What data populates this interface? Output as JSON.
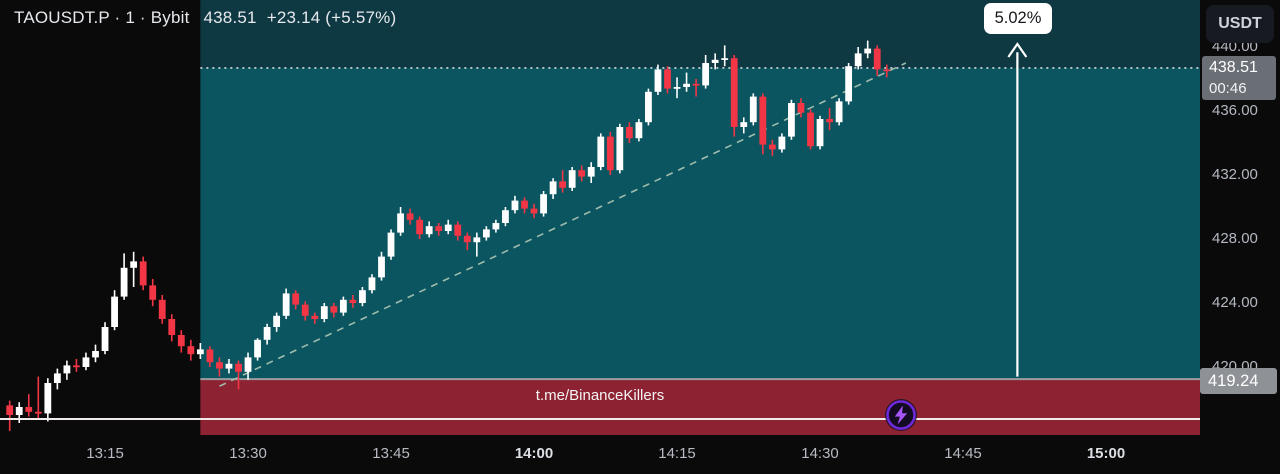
{
  "header": {
    "symbol_line": "TAOUSDT.P · 1 · Bybit",
    "last_price": "438.51",
    "change": "+23.14 (+5.57%)"
  },
  "top_right": {
    "currency_label": "USDT"
  },
  "annotations": {
    "gain_label": "5.02%",
    "watermark": "t.me/BinanceKillers",
    "lightning_icon": "lightning-bolt-badge"
  },
  "price_axis": {
    "current_price_label": "438.51",
    "countdown": "00:46",
    "level_label": "419.24"
  },
  "colors": {
    "background": "#0a0a0b",
    "zone_tint_above_target": "#0f3942",
    "long_zone_teal": "#0a5560",
    "stop_zone_red": "#8d2332",
    "candle_up": "#ffffff",
    "candle_down": "#f23645",
    "trendline": "#9fbcad",
    "target_dotted_line": "#d8dee1",
    "entry_level_line": "#9b9da1",
    "price_line_white": "#f1ecea",
    "arrow": "#ffffff",
    "badge_bg": "#ffffff",
    "badge_text": "#15171b",
    "axis_text": "#b4b8c0",
    "label_bg_gray": "#6a6e75",
    "level_label_bg": "#8e9196",
    "bolt_purple": "#a855f7",
    "bolt_ring": "#6d28d9"
  },
  "chart_data": {
    "type": "candlestick",
    "symbol": "TAOUSDT.P",
    "exchange": "Bybit",
    "interval_minutes": 1,
    "start_time": "13:05",
    "time_range_visible": [
      "13:04",
      "15:10"
    ],
    "price_range_visible": [
      415.75,
      442.94
    ],
    "price_axis_ticks": [
      {
        "label": "440.00",
        "value": 440.0
      },
      {
        "label": "436.00",
        "value": 436.0
      },
      {
        "label": "432.00",
        "value": 432.0
      },
      {
        "label": "428.00",
        "value": 428.0
      },
      {
        "label": "424.00",
        "value": 424.0
      },
      {
        "label": "420.00",
        "value": 420.0
      }
    ],
    "time_ticks": [
      {
        "label": "13:15",
        "minute": 10,
        "bold": false
      },
      {
        "label": "13:30",
        "minute": 25,
        "bold": false
      },
      {
        "label": "13:45",
        "minute": 40,
        "bold": false
      },
      {
        "label": "14:00",
        "minute": 55,
        "bold": true
      },
      {
        "label": "14:15",
        "minute": 70,
        "bold": false
      },
      {
        "label": "14:30",
        "minute": 85,
        "bold": false
      },
      {
        "label": "14:45",
        "minute": 100,
        "bold": false
      },
      {
        "label": "15:00",
        "minute": 115,
        "bold": true
      }
    ],
    "current_price": 438.51,
    "bar_countdown": "00:46",
    "level_price": 419.24,
    "target_line_price": 438.69,
    "white_price_line": 416.75,
    "zones": {
      "long_zone": {
        "from_price": 419.24,
        "to_price": 438.69,
        "from_minute": 20,
        "to_minute": 125
      },
      "stop_zone": {
        "from_price": 415.75,
        "to_price": 419.24,
        "from_minute": 20,
        "to_minute": 125
      },
      "tint_above_target": {
        "from_price": 438.69,
        "to_price": 442.94
      }
    },
    "trendline": {
      "from_minute": 22,
      "from_price": 418.8,
      "to_minute": 94,
      "to_price": 439.0
    },
    "gain_arrow": {
      "percent": "5.02%",
      "minute": 105.7,
      "from_price": 419.4,
      "to_price": 440.3
    },
    "candles_ohlc": [
      [
        417.6,
        417.9,
        416.0,
        417.0
      ],
      [
        417.0,
        417.8,
        416.5,
        417.5
      ],
      [
        417.5,
        418.3,
        416.9,
        417.2
      ],
      [
        417.2,
        419.4,
        416.8,
        417.1
      ],
      [
        417.1,
        419.3,
        416.6,
        419.0
      ],
      [
        419.0,
        419.9,
        418.6,
        419.6
      ],
      [
        419.6,
        420.4,
        419.2,
        420.1
      ],
      [
        420.1,
        420.5,
        419.7,
        420.0
      ],
      [
        420.0,
        420.9,
        419.8,
        420.6
      ],
      [
        420.6,
        421.4,
        420.3,
        421.0
      ],
      [
        421.0,
        422.8,
        420.8,
        422.5
      ],
      [
        422.5,
        424.8,
        422.3,
        424.4
      ],
      [
        424.4,
        427.1,
        424.2,
        426.2
      ],
      [
        426.2,
        427.2,
        425.0,
        426.6
      ],
      [
        426.6,
        426.9,
        424.8,
        425.1
      ],
      [
        425.1,
        425.5,
        423.8,
        424.2
      ],
      [
        424.2,
        424.5,
        422.7,
        423.0
      ],
      [
        423.0,
        423.3,
        421.6,
        422.0
      ],
      [
        422.0,
        422.3,
        420.9,
        421.3
      ],
      [
        421.3,
        421.7,
        420.4,
        420.8
      ],
      [
        420.8,
        421.5,
        420.5,
        421.1
      ],
      [
        421.1,
        421.3,
        420.0,
        420.3
      ],
      [
        420.3,
        420.6,
        419.4,
        419.9
      ],
      [
        419.9,
        420.5,
        419.6,
        420.2
      ],
      [
        420.2,
        420.4,
        418.6,
        419.7
      ],
      [
        419.7,
        420.9,
        419.2,
        420.6
      ],
      [
        420.6,
        421.8,
        420.4,
        421.7
      ],
      [
        421.7,
        422.7,
        421.4,
        422.5
      ],
      [
        422.5,
        423.4,
        422.2,
        423.2
      ],
      [
        423.2,
        424.9,
        423.0,
        424.6
      ],
      [
        424.6,
        424.8,
        423.6,
        423.9
      ],
      [
        423.9,
        424.1,
        422.9,
        423.2
      ],
      [
        423.2,
        423.4,
        422.7,
        423.0
      ],
      [
        423.0,
        424.0,
        422.8,
        423.8
      ],
      [
        423.8,
        424.0,
        423.1,
        423.4
      ],
      [
        423.4,
        424.4,
        423.2,
        424.2
      ],
      [
        424.2,
        424.5,
        423.7,
        424.0
      ],
      [
        424.0,
        425.0,
        423.8,
        424.8
      ],
      [
        424.8,
        425.8,
        424.6,
        425.6
      ],
      [
        425.6,
        427.2,
        425.4,
        426.9
      ],
      [
        426.9,
        428.6,
        426.7,
        428.4
      ],
      [
        428.4,
        430.0,
        428.2,
        429.6
      ],
      [
        429.6,
        429.9,
        428.9,
        429.2
      ],
      [
        429.2,
        429.4,
        428.0,
        428.3
      ],
      [
        428.3,
        429.1,
        428.1,
        428.8
      ],
      [
        428.8,
        429.0,
        428.2,
        428.5
      ],
      [
        428.5,
        429.2,
        428.3,
        428.9
      ],
      [
        428.9,
        429.1,
        427.9,
        428.2
      ],
      [
        428.2,
        428.4,
        427.3,
        427.8
      ],
      [
        427.8,
        428.4,
        426.9,
        428.1
      ],
      [
        428.1,
        428.8,
        427.9,
        428.6
      ],
      [
        428.6,
        429.2,
        428.4,
        429.0
      ],
      [
        429.0,
        430.0,
        428.8,
        429.8
      ],
      [
        429.8,
        430.7,
        429.6,
        430.4
      ],
      [
        430.4,
        430.6,
        429.6,
        429.9
      ],
      [
        429.9,
        430.2,
        429.3,
        429.6
      ],
      [
        429.6,
        431.0,
        429.4,
        430.8
      ],
      [
        430.8,
        431.8,
        430.5,
        431.6
      ],
      [
        431.6,
        432.3,
        430.9,
        431.2
      ],
      [
        431.2,
        432.5,
        431.0,
        432.3
      ],
      [
        432.3,
        432.6,
        431.6,
        431.9
      ],
      [
        431.9,
        432.8,
        431.5,
        432.5
      ],
      [
        432.5,
        434.6,
        432.3,
        434.4
      ],
      [
        434.4,
        434.7,
        432.0,
        432.3
      ],
      [
        432.3,
        435.2,
        432.1,
        435.0
      ],
      [
        435.0,
        435.3,
        434.0,
        434.3
      ],
      [
        434.3,
        435.5,
        434.1,
        435.3
      ],
      [
        435.3,
        437.4,
        435.1,
        437.2
      ],
      [
        437.2,
        438.9,
        437.0,
        438.6
      ],
      [
        438.6,
        438.8,
        437.1,
        437.4
      ],
      [
        437.4,
        438.1,
        436.8,
        437.5
      ],
      [
        437.5,
        438.4,
        437.2,
        437.7
      ],
      [
        437.7,
        438.0,
        436.9,
        437.6
      ],
      [
        437.6,
        439.5,
        437.4,
        439.0
      ],
      [
        439.0,
        439.6,
        438.6,
        439.2
      ],
      [
        439.2,
        440.1,
        438.8,
        439.3
      ],
      [
        439.3,
        439.5,
        434.4,
        435.0
      ],
      [
        435.0,
        435.6,
        434.6,
        435.3
      ],
      [
        435.3,
        437.1,
        435.1,
        436.9
      ],
      [
        436.9,
        437.1,
        433.3,
        433.9
      ],
      [
        433.9,
        434.2,
        433.2,
        433.6
      ],
      [
        433.6,
        434.6,
        433.4,
        434.4
      ],
      [
        434.4,
        436.7,
        434.2,
        436.5
      ],
      [
        436.5,
        436.8,
        435.6,
        435.9
      ],
      [
        435.9,
        436.1,
        433.6,
        433.8
      ],
      [
        433.8,
        435.7,
        433.6,
        435.5
      ],
      [
        435.5,
        436.2,
        434.8,
        435.3
      ],
      [
        435.3,
        436.8,
        435.1,
        436.6
      ],
      [
        436.6,
        439.0,
        436.4,
        438.8
      ],
      [
        438.8,
        440.0,
        438.6,
        439.6
      ],
      [
        439.6,
        440.4,
        439.3,
        439.9
      ],
      [
        439.9,
        440.1,
        438.2,
        438.6
      ],
      [
        438.6,
        438.9,
        438.1,
        438.51
      ]
    ]
  }
}
